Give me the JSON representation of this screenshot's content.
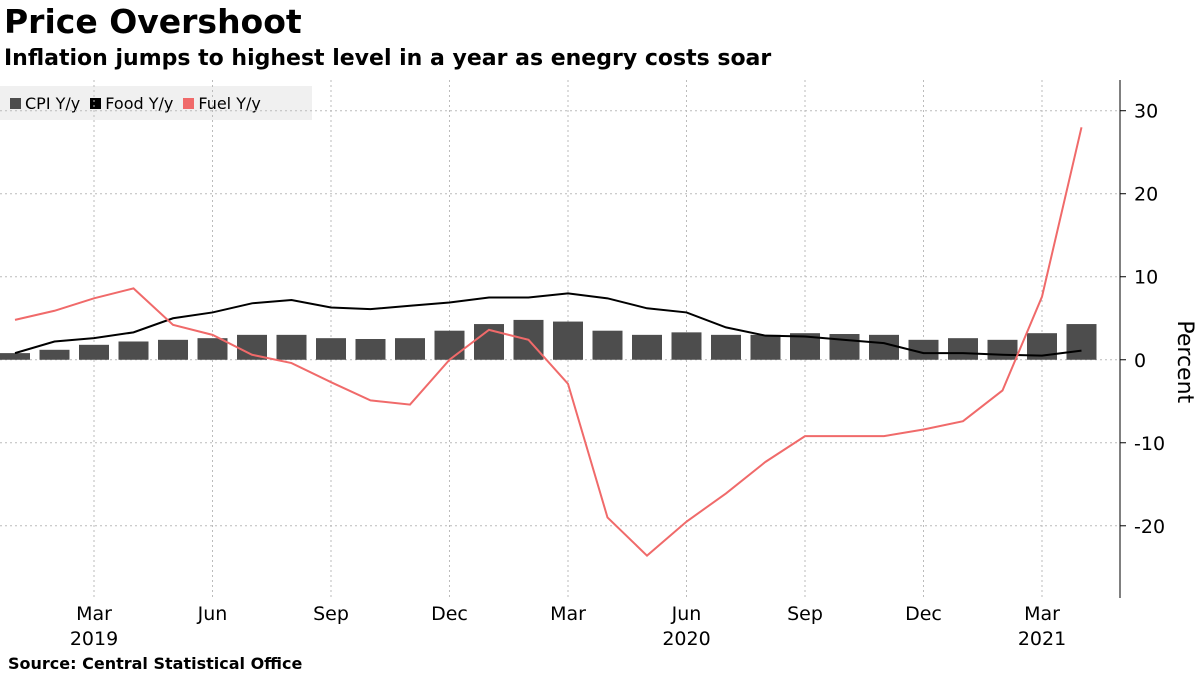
{
  "title": "Price Overshoot",
  "subtitle": "Inflation jumps to highest level in a year as enegry costs soar",
  "source": "Source:  Central Statistical Office",
  "chart_data": {
    "type": "bar+line",
    "ylabel": "Percent",
    "ylim": [
      -28.7,
      33.7
    ],
    "yticks": [
      -20,
      -10,
      0,
      10,
      20,
      30
    ],
    "grid": true,
    "legend_placement": "top-left",
    "months": [
      "2019-01",
      "2019-02",
      "2019-03",
      "2019-04",
      "2019-05",
      "2019-06",
      "2019-07",
      "2019-08",
      "2019-09",
      "2019-10",
      "2019-11",
      "2019-12",
      "2020-01",
      "2020-02",
      "2020-03",
      "2020-04",
      "2020-05",
      "2020-06",
      "2020-07",
      "2020-08",
      "2020-09",
      "2020-10",
      "2020-11",
      "2020-12",
      "2021-01",
      "2021-02",
      "2021-03",
      "2021-04"
    ],
    "xticks": [
      {
        "label": "Mar",
        "index": 2,
        "year": "2019"
      },
      {
        "label": "Jun",
        "index": 5
      },
      {
        "label": "Sep",
        "index": 8
      },
      {
        "label": "Dec",
        "index": 11
      },
      {
        "label": "Mar",
        "index": 14
      },
      {
        "label": "Jun",
        "index": 17,
        "year": "2020"
      },
      {
        "label": "Sep",
        "index": 20
      },
      {
        "label": "Dec",
        "index": 23
      },
      {
        "label": "Mar",
        "index": 26,
        "year": "2021"
      }
    ],
    "series": [
      {
        "name": "CPI Y/y",
        "kind": "bar",
        "color": "#4d4d4d",
        "values": [
          0.8,
          1.2,
          1.8,
          2.2,
          2.4,
          2.6,
          3.0,
          3.0,
          2.6,
          2.5,
          2.6,
          3.5,
          4.3,
          4.8,
          4.6,
          3.5,
          3.0,
          3.3,
          3.0,
          3.0,
          3.2,
          3.1,
          3.0,
          2.4,
          2.6,
          2.4,
          3.2,
          4.3
        ]
      },
      {
        "name": "Food Y/y",
        "kind": "line",
        "color": "#000000",
        "values": [
          0.8,
          2.2,
          2.6,
          3.3,
          5.0,
          5.7,
          6.8,
          7.2,
          6.3,
          6.1,
          6.5,
          6.9,
          7.5,
          7.5,
          8.0,
          7.4,
          6.2,
          5.7,
          3.9,
          2.9,
          2.8,
          2.4,
          2.0,
          0.8,
          0.8,
          0.6,
          0.5,
          1.1
        ]
      },
      {
        "name": "Fuel Y/y",
        "kind": "line",
        "color": "#f06a6a",
        "values": [
          4.8,
          5.9,
          7.4,
          8.6,
          4.2,
          3.0,
          0.6,
          -0.4,
          -2.7,
          -4.9,
          -5.4,
          0,
          3.6,
          2.4,
          -2.9,
          -19,
          -23.6,
          -19.5,
          -16.1,
          -12.3,
          -9.2,
          -9.2,
          -9.2,
          -8.4,
          -7.4,
          -3.7,
          7.6,
          28
        ]
      }
    ]
  }
}
